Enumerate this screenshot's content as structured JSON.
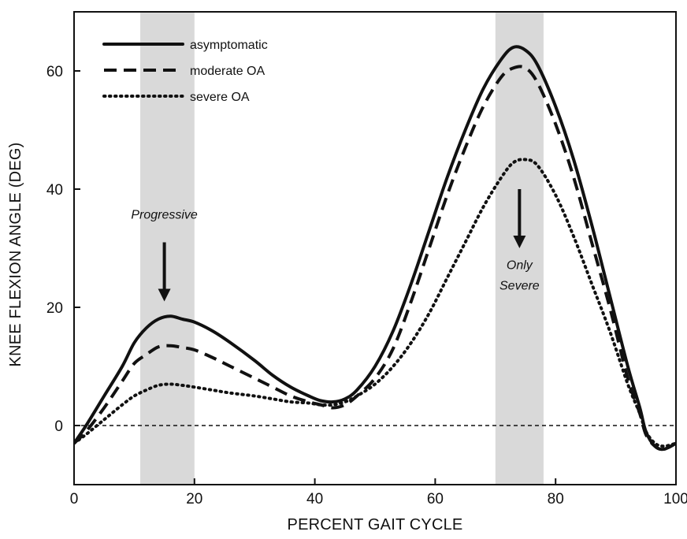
{
  "chart_data": {
    "type": "line",
    "title": "",
    "xlabel": "PERCENT GAIT CYCLE",
    "ylabel": "KNEE FLEXION ANGLE (DEG)",
    "xlim": [
      0,
      100
    ],
    "ylim": [
      -10,
      70
    ],
    "x_ticks": [
      0,
      20,
      40,
      60,
      80,
      100
    ],
    "y_ticks": [
      0,
      20,
      40,
      60
    ],
    "grid": false,
    "legend_position": "top-left",
    "shaded_regions": [
      {
        "x_start": 11,
        "x_end": 20,
        "color": "#d9d9d9"
      },
      {
        "x_start": 70,
        "x_end": 78,
        "color": "#d9d9d9"
      }
    ],
    "reference_line": {
      "y": 0,
      "style": "dashed"
    },
    "series": [
      {
        "name": "asymptomatic",
        "style": "solid",
        "points": [
          [
            0,
            -3
          ],
          [
            2,
            0
          ],
          [
            5,
            5
          ],
          [
            8,
            10
          ],
          [
            10,
            14
          ],
          [
            12,
            16.5
          ],
          [
            14,
            18
          ],
          [
            16,
            18.5
          ],
          [
            18,
            18
          ],
          [
            20,
            17.5
          ],
          [
            23,
            16
          ],
          [
            26,
            14
          ],
          [
            30,
            11
          ],
          [
            33,
            8.5
          ],
          [
            36,
            6.5
          ],
          [
            39,
            5
          ],
          [
            41,
            4.2
          ],
          [
            43,
            4
          ],
          [
            45,
            4.5
          ],
          [
            47,
            6
          ],
          [
            50,
            10
          ],
          [
            53,
            16
          ],
          [
            56,
            24
          ],
          [
            59,
            33
          ],
          [
            62,
            42
          ],
          [
            65,
            50
          ],
          [
            68,
            57
          ],
          [
            71,
            62
          ],
          [
            73,
            64
          ],
          [
            75,
            63.5
          ],
          [
            77,
            61
          ],
          [
            80,
            54
          ],
          [
            83,
            45
          ],
          [
            86,
            34
          ],
          [
            89,
            22
          ],
          [
            92,
            10
          ],
          [
            94,
            3
          ],
          [
            95,
            -1
          ],
          [
            96.5,
            -3.5
          ],
          [
            98,
            -4
          ],
          [
            100,
            -3
          ]
        ]
      },
      {
        "name": "moderate OA",
        "style": "dashed",
        "points": [
          [
            0,
            -3
          ],
          [
            2,
            -1
          ],
          [
            5,
            3
          ],
          [
            8,
            7.5
          ],
          [
            10,
            10.5
          ],
          [
            12,
            12
          ],
          [
            14,
            13.3
          ],
          [
            16,
            13.5
          ],
          [
            18,
            13.2
          ],
          [
            20,
            12.8
          ],
          [
            23,
            11.5
          ],
          [
            26,
            10
          ],
          [
            30,
            8
          ],
          [
            33,
            6.5
          ],
          [
            36,
            5
          ],
          [
            39,
            4
          ],
          [
            41,
            3.5
          ],
          [
            43,
            3
          ],
          [
            45,
            3.5
          ],
          [
            47,
            5
          ],
          [
            50,
            8
          ],
          [
            53,
            13
          ],
          [
            56,
            21
          ],
          [
            59,
            30
          ],
          [
            62,
            39
          ],
          [
            65,
            47
          ],
          [
            68,
            54
          ],
          [
            71,
            59
          ],
          [
            73,
            60.5
          ],
          [
            75,
            60.5
          ],
          [
            77,
            58
          ],
          [
            80,
            51
          ],
          [
            83,
            42
          ],
          [
            86,
            31
          ],
          [
            89,
            20
          ],
          [
            92,
            8
          ],
          [
            94,
            2
          ],
          [
            95,
            -1.5
          ],
          [
            96.5,
            -3.5
          ],
          [
            98,
            -4
          ],
          [
            100,
            -3
          ]
        ]
      },
      {
        "name": "severe OA",
        "style": "dotted",
        "points": [
          [
            0,
            -3
          ],
          [
            2,
            -1.5
          ],
          [
            5,
            1
          ],
          [
            8,
            3.5
          ],
          [
            10,
            5
          ],
          [
            12,
            6
          ],
          [
            14,
            6.8
          ],
          [
            16,
            7
          ],
          [
            18,
            6.8
          ],
          [
            20,
            6.5
          ],
          [
            23,
            6
          ],
          [
            26,
            5.5
          ],
          [
            30,
            5
          ],
          [
            33,
            4.5
          ],
          [
            36,
            4
          ],
          [
            39,
            3.8
          ],
          [
            41,
            3.5
          ],
          [
            43,
            3.5
          ],
          [
            45,
            4
          ],
          [
            47,
            5
          ],
          [
            50,
            7
          ],
          [
            53,
            10
          ],
          [
            56,
            14
          ],
          [
            59,
            19
          ],
          [
            62,
            25
          ],
          [
            65,
            31
          ],
          [
            68,
            37
          ],
          [
            71,
            42
          ],
          [
            73,
            44.5
          ],
          [
            75,
            45
          ],
          [
            77,
            44
          ],
          [
            80,
            39
          ],
          [
            83,
            32
          ],
          [
            86,
            24
          ],
          [
            89,
            16
          ],
          [
            92,
            7
          ],
          [
            94,
            2
          ],
          [
            95,
            -1
          ],
          [
            96.5,
            -3
          ],
          [
            98,
            -3.5
          ],
          [
            100,
            -3
          ]
        ]
      }
    ],
    "annotations": [
      {
        "text": "Progressive",
        "x": 15,
        "y": 35,
        "arrow_from_y": 31,
        "arrow_to_y": 21
      },
      {
        "text": "Only",
        "x": 74,
        "y": 26.5,
        "arrow_from_y": 40,
        "arrow_to_y": 30
      },
      {
        "text": "Severe",
        "x": 74,
        "y": 23
      }
    ]
  },
  "legend_labels": [
    "asymptomatic",
    "moderate OA",
    "severe OA"
  ]
}
